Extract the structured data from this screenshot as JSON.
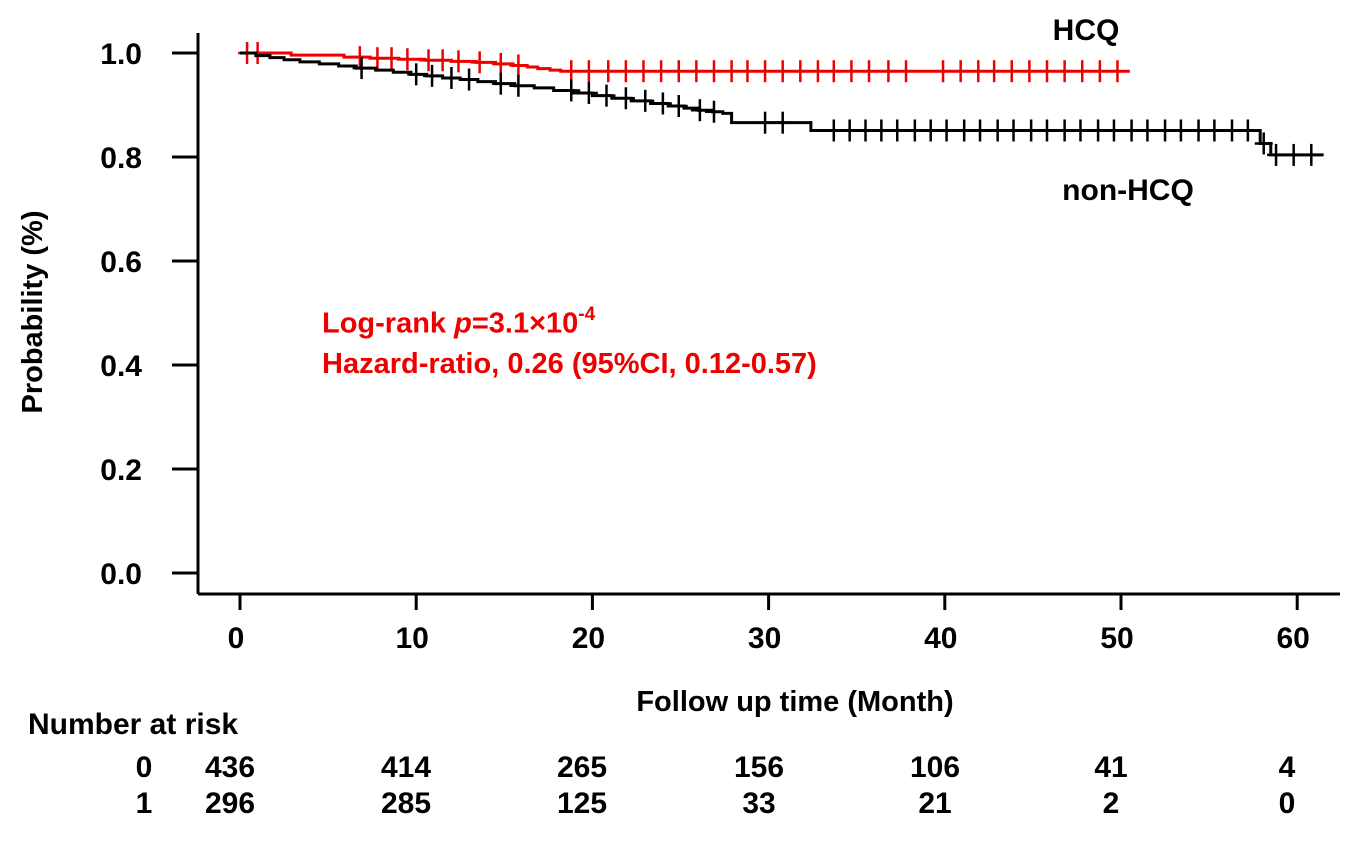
{
  "chart_data": {
    "type": "line",
    "subtype": "kaplan-meier-step-curves",
    "title": "",
    "xlabel": "Follow up time (Month)",
    "ylabel": "Probability (%)",
    "xlim": [
      0,
      62
    ],
    "ylim": [
      0.0,
      1.04
    ],
    "x_ticks": [
      0,
      10,
      20,
      30,
      40,
      50,
      60
    ],
    "y_ticks": [
      "0.0",
      "0.2",
      "0.4",
      "0.6",
      "0.8",
      "1.0"
    ],
    "grid": false,
    "legend_position": "inline-curve-labels",
    "series": [
      {
        "name": "HCQ",
        "label": "HCQ",
        "color": "#ed0000",
        "steps": [
          [
            0,
            1.0
          ],
          [
            2.9,
            0.996
          ],
          [
            5.9,
            0.992
          ],
          [
            7.4,
            0.99
          ],
          [
            9.0,
            0.988
          ],
          [
            10.5,
            0.986
          ],
          [
            12.0,
            0.984
          ],
          [
            13.4,
            0.982
          ],
          [
            14.5,
            0.979
          ],
          [
            15.5,
            0.976
          ],
          [
            16.3,
            0.973
          ],
          [
            16.9,
            0.97
          ],
          [
            17.6,
            0.967
          ],
          [
            18.2,
            0.965
          ],
          [
            50.5,
            0.965
          ]
        ],
        "censors": [
          [
            0.4,
            1.0
          ],
          [
            1.0,
            1.0
          ],
          [
            6.8,
            0.992
          ],
          [
            7.8,
            0.99
          ],
          [
            8.6,
            0.99
          ],
          [
            9.5,
            0.988
          ],
          [
            10.7,
            0.986
          ],
          [
            11.5,
            0.986
          ],
          [
            12.4,
            0.984
          ],
          [
            13.6,
            0.982
          ],
          [
            14.8,
            0.979
          ],
          [
            15.8,
            0.976
          ],
          [
            18.8,
            0.965
          ],
          [
            19.8,
            0.965
          ],
          [
            20.9,
            0.965
          ],
          [
            21.9,
            0.965
          ],
          [
            22.9,
            0.965
          ],
          [
            23.9,
            0.965
          ],
          [
            24.9,
            0.965
          ],
          [
            25.9,
            0.965
          ],
          [
            26.9,
            0.965
          ],
          [
            27.9,
            0.965
          ],
          [
            28.8,
            0.965
          ],
          [
            29.8,
            0.965
          ],
          [
            30.8,
            0.965
          ],
          [
            31.8,
            0.965
          ],
          [
            32.8,
            0.965
          ],
          [
            33.7,
            0.965
          ],
          [
            34.7,
            0.965
          ],
          [
            35.7,
            0.965
          ],
          [
            36.8,
            0.965
          ],
          [
            37.8,
            0.965
          ],
          [
            39.9,
            0.965
          ],
          [
            40.9,
            0.965
          ],
          [
            41.9,
            0.965
          ],
          [
            42.8,
            0.965
          ],
          [
            43.8,
            0.965
          ],
          [
            44.8,
            0.965
          ],
          [
            45.8,
            0.965
          ],
          [
            46.8,
            0.965
          ],
          [
            47.8,
            0.965
          ],
          [
            48.8,
            0.965
          ],
          [
            49.8,
            0.965
          ]
        ]
      },
      {
        "name": "non-HCQ",
        "label": "non-HCQ",
        "color": "#000000",
        "steps": [
          [
            0,
            1.0
          ],
          [
            0.9,
            0.995
          ],
          [
            1.7,
            0.991
          ],
          [
            2.5,
            0.987
          ],
          [
            3.4,
            0.983
          ],
          [
            4.5,
            0.979
          ],
          [
            5.6,
            0.975
          ],
          [
            6.6,
            0.971
          ],
          [
            7.7,
            0.967
          ],
          [
            8.7,
            0.963
          ],
          [
            9.7,
            0.959
          ],
          [
            10.6,
            0.956
          ],
          [
            11.5,
            0.952
          ],
          [
            12.5,
            0.949
          ],
          [
            13.5,
            0.945
          ],
          [
            14.5,
            0.941
          ],
          [
            15.6,
            0.937
          ],
          [
            16.7,
            0.933
          ],
          [
            17.8,
            0.928
          ],
          [
            18.9,
            0.923
          ],
          [
            20.0,
            0.918
          ],
          [
            21.1,
            0.913
          ],
          [
            22.2,
            0.908
          ],
          [
            23.3,
            0.903
          ],
          [
            24.3,
            0.898
          ],
          [
            25.2,
            0.894
          ],
          [
            26.0,
            0.89
          ],
          [
            26.8,
            0.887
          ],
          [
            27.4,
            0.884
          ],
          [
            27.9,
            0.866
          ],
          [
            32.4,
            0.851
          ],
          [
            57.9,
            0.826
          ],
          [
            58.5,
            0.804
          ],
          [
            61.5,
            0.804
          ]
        ],
        "censors": [
          [
            6.9,
            0.971
          ],
          [
            10.0,
            0.959
          ],
          [
            10.9,
            0.956
          ],
          [
            12.0,
            0.952
          ],
          [
            13.0,
            0.949
          ],
          [
            14.8,
            0.941
          ],
          [
            15.8,
            0.937
          ],
          [
            18.8,
            0.928
          ],
          [
            19.8,
            0.923
          ],
          [
            20.8,
            0.918
          ],
          [
            21.9,
            0.913
          ],
          [
            23.0,
            0.908
          ],
          [
            24.0,
            0.903
          ],
          [
            24.9,
            0.898
          ],
          [
            26.1,
            0.89
          ],
          [
            26.9,
            0.887
          ],
          [
            29.8,
            0.866
          ],
          [
            30.8,
            0.866
          ],
          [
            33.7,
            0.851
          ],
          [
            34.6,
            0.851
          ],
          [
            35.5,
            0.851
          ],
          [
            36.4,
            0.851
          ],
          [
            37.3,
            0.851
          ],
          [
            38.3,
            0.851
          ],
          [
            39.2,
            0.851
          ],
          [
            40.1,
            0.851
          ],
          [
            41.1,
            0.851
          ],
          [
            42.0,
            0.851
          ],
          [
            43.0,
            0.851
          ],
          [
            43.9,
            0.851
          ],
          [
            44.9,
            0.851
          ],
          [
            45.8,
            0.851
          ],
          [
            46.8,
            0.851
          ],
          [
            47.7,
            0.851
          ],
          [
            48.7,
            0.851
          ],
          [
            49.6,
            0.851
          ],
          [
            50.6,
            0.851
          ],
          [
            51.5,
            0.851
          ],
          [
            52.5,
            0.851
          ],
          [
            53.4,
            0.851
          ],
          [
            54.4,
            0.851
          ],
          [
            55.3,
            0.851
          ],
          [
            56.3,
            0.851
          ],
          [
            57.2,
            0.851
          ],
          [
            58.1,
            0.826
          ],
          [
            58.8,
            0.804
          ],
          [
            59.8,
            0.804
          ],
          [
            60.8,
            0.804
          ]
        ]
      }
    ],
    "annotations": {
      "color": "#ed0000",
      "line1_prefix": "Log-rank ",
      "line1_p": "p",
      "line1_mid": "=3.1×10",
      "line1_sup": "-4",
      "line2": "Hazard-ratio, 0.26 (95%CI, 0.12-0.57)"
    }
  },
  "curve_labels": {
    "hcq": "HCQ",
    "non_hcq": "non-HCQ"
  },
  "risk_table": {
    "title": "Number at risk",
    "rows": [
      {
        "label": "0",
        "values": [
          "436",
          "414",
          "265",
          "156",
          "106",
          "41",
          "4"
        ]
      },
      {
        "label": "1",
        "values": [
          "296",
          "285",
          "125",
          "33",
          "21",
          "2",
          "0"
        ]
      }
    ]
  }
}
